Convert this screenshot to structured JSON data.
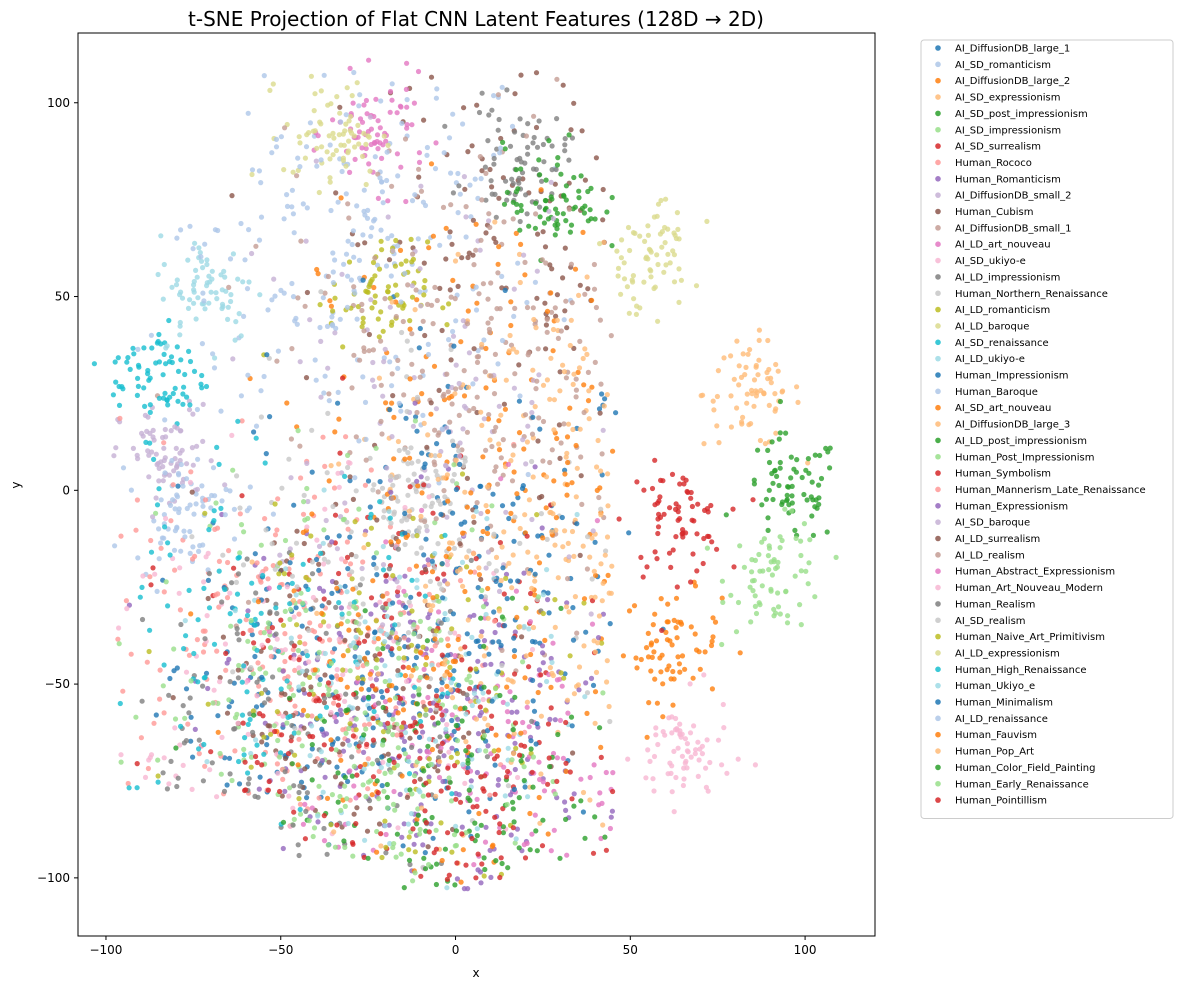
{
  "chart_data": {
    "type": "scatter",
    "title": "t-SNE Projection of Flat CNN Latent Features (128D → 2D)",
    "xlabel": "x",
    "ylabel": "y",
    "xlim": [
      -108,
      120
    ],
    "ylim": [
      -115,
      118
    ],
    "xticks": [
      -100,
      -50,
      0,
      50,
      100
    ],
    "yticks": [
      -100,
      -50,
      0,
      50,
      100
    ],
    "xtick_labels": [
      "−100",
      "−50",
      "0",
      "50",
      "100"
    ],
    "ytick_labels": [
      "−100",
      "−50",
      "0",
      "50",
      "100"
    ],
    "grid": false,
    "legend_position": "outside-right",
    "series": [
      {
        "name": "AI_DiffusionDB_large_1",
        "color": "#1f77b4",
        "cluster": "center",
        "approx_center": [
          0,
          -20
        ]
      },
      {
        "name": "AI_SD_romanticism",
        "color": "#aec7e8",
        "cluster": "scattered",
        "approx_center": [
          -30,
          60
        ]
      },
      {
        "name": "AI_DiffusionDB_large_2",
        "color": "#ff7f0e",
        "cluster": "tight",
        "approx_center": [
          62,
          -40
        ]
      },
      {
        "name": "AI_SD_expressionism",
        "color": "#ffbb78",
        "cluster": "tight",
        "approx_center": [
          85,
          25
        ]
      },
      {
        "name": "AI_SD_post_impressionism",
        "color": "#2ca02c",
        "cluster": "tight",
        "approx_center": [
          96,
          0
        ]
      },
      {
        "name": "AI_SD_impressionism",
        "color": "#98df8a",
        "cluster": "tight",
        "approx_center": [
          92,
          -22
        ]
      },
      {
        "name": "AI_SD_surrealism",
        "color": "#d62728",
        "cluster": "tight",
        "approx_center": [
          63,
          -8
        ]
      },
      {
        "name": "Human_Rococo",
        "color": "#ff9896",
        "cluster": "scattered",
        "approx_center": [
          -40,
          -45
        ]
      },
      {
        "name": "Human_Romanticism",
        "color": "#9467bd",
        "cluster": "scattered",
        "approx_center": [
          -20,
          -60
        ]
      },
      {
        "name": "AI_DiffusionDB_small_2",
        "color": "#c5b0d5",
        "cluster": "tight",
        "approx_center": [
          -82,
          8
        ]
      },
      {
        "name": "Human_Cubism",
        "color": "#8c564b",
        "cluster": "scattered",
        "approx_center": [
          20,
          65
        ]
      },
      {
        "name": "AI_DiffusionDB_small_1",
        "color": "#c49c94",
        "cluster": "scattered",
        "approx_center": [
          20,
          20
        ]
      },
      {
        "name": "AI_LD_art_nouveau",
        "color": "#e377c2",
        "cluster": "tight",
        "approx_center": [
          -22,
          92
        ]
      },
      {
        "name": "AI_SD_ukiyo-e",
        "color": "#f7b6d2",
        "cluster": "tight",
        "approx_center": [
          65,
          -68
        ]
      },
      {
        "name": "AI_LD_impressionism",
        "color": "#7f7f7f",
        "cluster": "tight",
        "approx_center": [
          18,
          85
        ]
      },
      {
        "name": "Human_Northern_Renaissance",
        "color": "#c7c7c7",
        "cluster": "tight",
        "approx_center": [
          -12,
          0
        ]
      },
      {
        "name": "AI_LD_romanticism",
        "color": "#bcbd22",
        "cluster": "tight",
        "approx_center": [
          -22,
          50
        ]
      },
      {
        "name": "AI_LD_baroque",
        "color": "#dbdb8d",
        "cluster": "tight",
        "approx_center": [
          -35,
          92
        ]
      },
      {
        "name": "AI_SD_renaissance",
        "color": "#17becf",
        "cluster": "tight",
        "approx_center": [
          -85,
          29
        ]
      },
      {
        "name": "AI_LD_ukiyo-e",
        "color": "#9edae5",
        "cluster": "tight",
        "approx_center": [
          -71,
          52
        ]
      },
      {
        "name": "Human_Impressionism",
        "color": "#1f77b4",
        "cluster": "scattered",
        "approx_center": [
          -40,
          -60
        ]
      },
      {
        "name": "Human_Baroque",
        "color": "#aec7e8",
        "cluster": "tight",
        "approx_center": [
          -78,
          -5
        ]
      },
      {
        "name": "AI_SD_art_nouveau",
        "color": "#ff7f0e",
        "cluster": "scattered",
        "approx_center": [
          10,
          20
        ]
      },
      {
        "name": "AI_DiffusionDB_large_3",
        "color": "#ffbb78",
        "cluster": "scattered",
        "approx_center": [
          30,
          10
        ]
      },
      {
        "name": "AI_LD_post_impressionism",
        "color": "#2ca02c",
        "cluster": "tight",
        "approx_center": [
          28,
          75
        ]
      },
      {
        "name": "Human_Post_Impressionism",
        "color": "#98df8a",
        "cluster": "scattered",
        "approx_center": [
          -30,
          -45
        ]
      },
      {
        "name": "Human_Symbolism",
        "color": "#d62728",
        "cluster": "scattered",
        "approx_center": [
          -20,
          -40
        ]
      },
      {
        "name": "Human_Mannerism_Late_Renaissance",
        "color": "#ff9896",
        "cluster": "scattered",
        "approx_center": [
          -55,
          -40
        ]
      },
      {
        "name": "Human_Expressionism",
        "color": "#9467bd",
        "cluster": "scattered",
        "approx_center": [
          0,
          -70
        ]
      },
      {
        "name": "AI_SD_baroque",
        "color": "#c5b0d5",
        "cluster": "scattered",
        "approx_center": [
          -10,
          25
        ]
      },
      {
        "name": "AI_LD_surrealism",
        "color": "#8c564b",
        "cluster": "scattered",
        "approx_center": [
          -30,
          -55
        ]
      },
      {
        "name": "AI_LD_realism",
        "color": "#c49c94",
        "cluster": "scattered",
        "approx_center": [
          0,
          40
        ]
      },
      {
        "name": "Human_Abstract_Expressionism",
        "color": "#e377c2",
        "cluster": "scattered",
        "approx_center": [
          10,
          -70
        ]
      },
      {
        "name": "Human_Art_Nouveau_Modern",
        "color": "#f7b6d2",
        "cluster": "scattered",
        "approx_center": [
          -50,
          -55
        ]
      },
      {
        "name": "Human_Realism",
        "color": "#7f7f7f",
        "cluster": "scattered",
        "approx_center": [
          -45,
          -70
        ]
      },
      {
        "name": "AI_SD_realism",
        "color": "#c7c7c7",
        "cluster": "scattered",
        "approx_center": [
          -15,
          -15
        ]
      },
      {
        "name": "Human_Naive_Art_Primitivism",
        "color": "#bcbd22",
        "cluster": "scattered",
        "approx_center": [
          -20,
          -50
        ]
      },
      {
        "name": "AI_LD_expressionism",
        "color": "#dbdb8d",
        "cluster": "tight",
        "approx_center": [
          55,
          60
        ]
      },
      {
        "name": "Human_High_Renaissance",
        "color": "#17becf",
        "cluster": "scattered",
        "approx_center": [
          -60,
          -45
        ]
      },
      {
        "name": "Human_Ukiyo_e",
        "color": "#9edae5",
        "cluster": "scattered",
        "approx_center": [
          -10,
          -55
        ]
      },
      {
        "name": "Human_Minimalism",
        "color": "#1f77b4",
        "cluster": "scattered",
        "approx_center": [
          5,
          -25
        ]
      },
      {
        "name": "AI_LD_renaissance",
        "color": "#aec7e8",
        "cluster": "scattered",
        "approx_center": [
          -30,
          72
        ]
      },
      {
        "name": "Human_Fauvism",
        "color": "#ff7f0e",
        "cluster": "scattered",
        "approx_center": [
          -5,
          -50
        ]
      },
      {
        "name": "Human_Pop_Art",
        "color": "#ffbb78",
        "cluster": "scattered",
        "approx_center": [
          25,
          -40
        ]
      },
      {
        "name": "Human_Color_Field_Painting",
        "color": "#2ca02c",
        "cluster": "scattered",
        "approx_center": [
          5,
          -100
        ]
      },
      {
        "name": "Human_Early_Renaissance",
        "color": "#98df8a",
        "cluster": "scattered",
        "approx_center": [
          -30,
          -75
        ]
      },
      {
        "name": "Human_Pointillism",
        "color": "#d62728",
        "cluster": "scattered",
        "approx_center": [
          -15,
          -85
        ]
      }
    ]
  }
}
